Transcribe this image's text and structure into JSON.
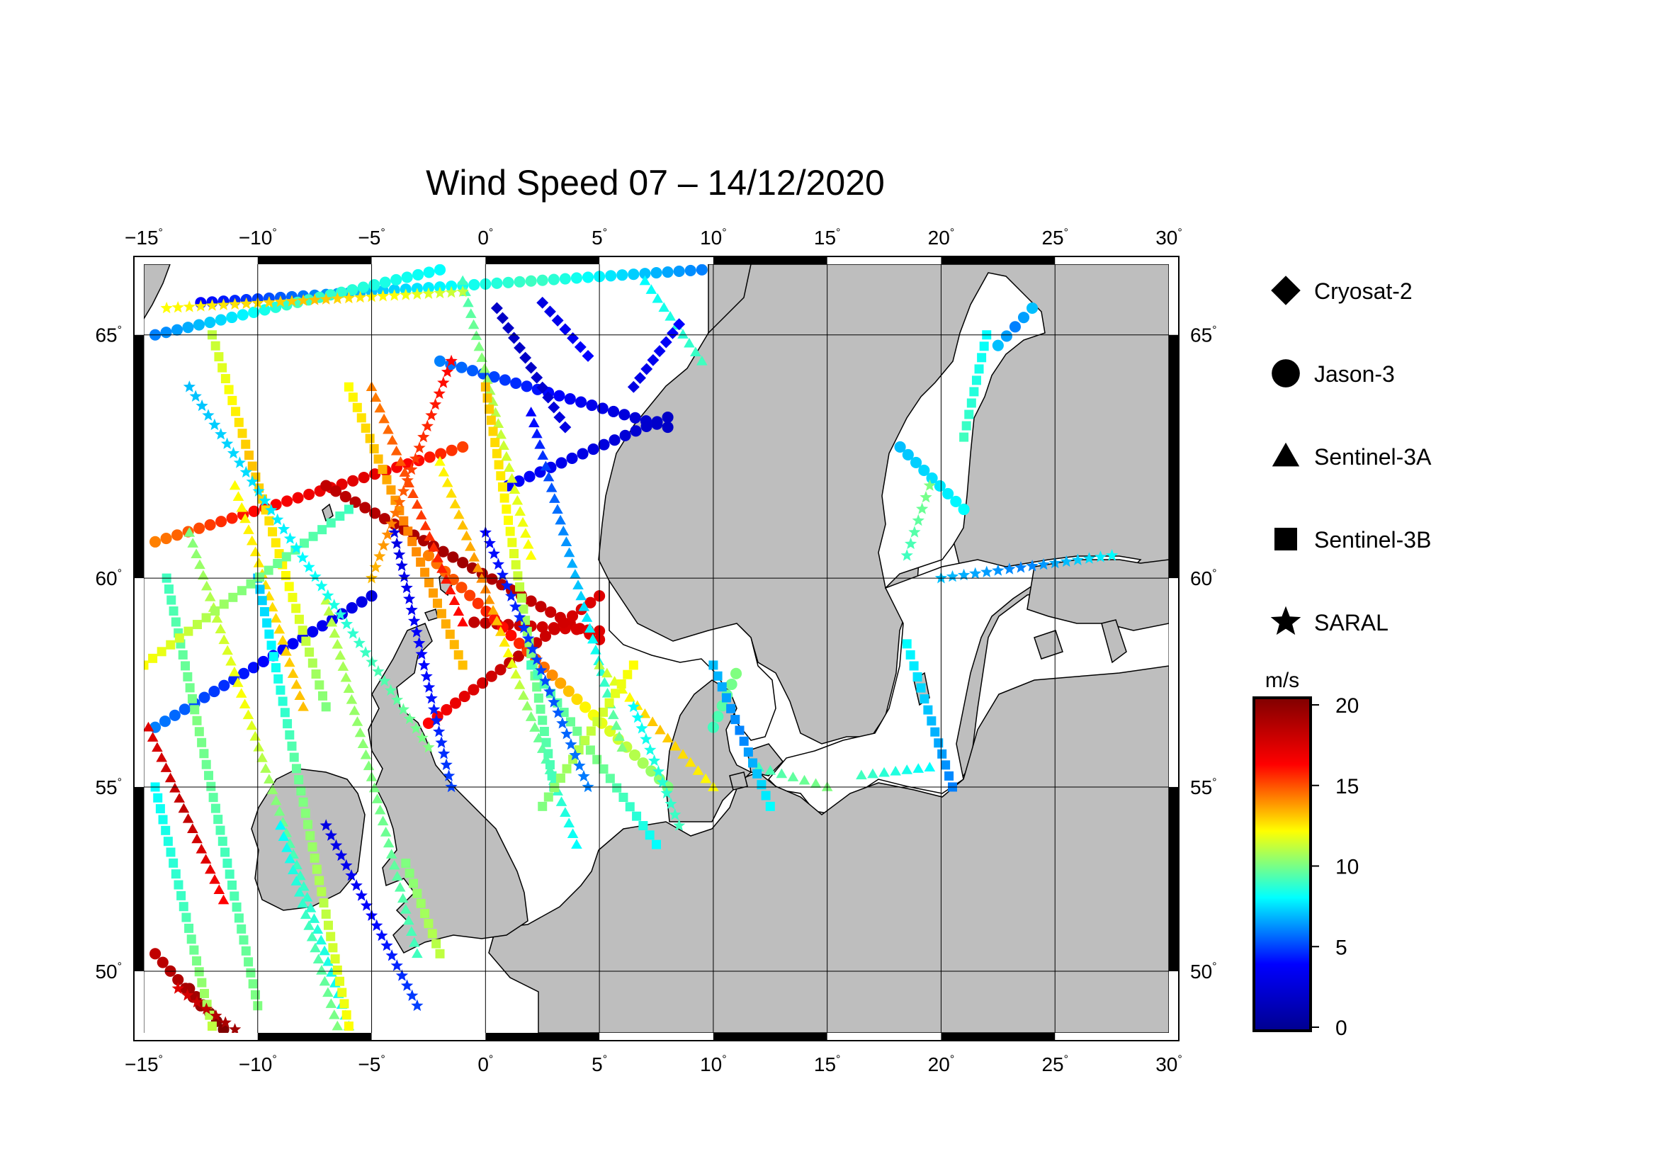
{
  "title": "Wind Speed 07 – 14/12/2020",
  "map": {
    "projection": "Mercator",
    "lon_range": [
      -15,
      30
    ],
    "lat_range": [
      48.2,
      66.3
    ],
    "lon_ticks": [
      -15,
      -10,
      -5,
      0,
      5,
      10,
      15,
      20,
      25,
      30
    ],
    "lon_tick_labels": [
      "−15",
      "−10",
      "−5",
      "0",
      "5",
      "10",
      "15",
      "20",
      "25",
      "30"
    ],
    "lat_ticks": [
      50,
      55,
      60,
      65
    ],
    "lat_tick_labels": [
      "50",
      "55",
      "60",
      "65"
    ],
    "degree_symbol": "°",
    "colors": {
      "ocean": "#ffffff",
      "land": "#bebebe",
      "coastline": "#000000",
      "grid": "#000000"
    }
  },
  "legend": {
    "items": [
      {
        "label": "Cryosat-2",
        "marker": "diamond"
      },
      {
        "label": "Jason-3",
        "marker": "circle"
      },
      {
        "label": "Sentinel-3A",
        "marker": "triangle"
      },
      {
        "label": "Sentinel-3B",
        "marker": "square"
      },
      {
        "label": "SARAL",
        "marker": "star"
      }
    ]
  },
  "colorbar": {
    "unit": "m/s",
    "range": [
      0,
      20
    ],
    "ticks": [
      0,
      5,
      10,
      15,
      20
    ],
    "tick_labels": [
      "0",
      "5",
      "10",
      "15",
      "20"
    ],
    "colormap": "jet",
    "stops": [
      "#00008f",
      "#0000ff",
      "#00ffff",
      "#ffff00",
      "#ff0000",
      "#800000"
    ]
  },
  "chart_data": {
    "type": "scatter",
    "x_label": "",
    "y_label": "",
    "value_unit": "m/s",
    "tracks": [
      {
        "sat": "Jason-3",
        "from": [
          -12.5,
          65.6
        ],
        "to": [
          9.5,
          66.2
        ],
        "v": [
          4,
          7,
          9,
          6
        ]
      },
      {
        "sat": "Jason-3",
        "from": [
          -14.5,
          65.0
        ],
        "to": [
          -2.0,
          66.2
        ],
        "v": [
          6,
          9,
          8
        ]
      },
      {
        "sat": "Jason-3",
        "from": [
          -2.0,
          64.5
        ],
        "to": [
          8.0,
          63.2
        ],
        "v": [
          6,
          4,
          2
        ]
      },
      {
        "sat": "Jason-3",
        "from": [
          1.0,
          62.0
        ],
        "to": [
          8.0,
          63.4
        ],
        "v": [
          4,
          3,
          2
        ]
      },
      {
        "sat": "Jason-3",
        "from": [
          -14.5,
          60.8
        ],
        "to": [
          -1.0,
          62.8
        ],
        "v": [
          14,
          16,
          17,
          15
        ]
      },
      {
        "sat": "Jason-3",
        "from": [
          -7.0,
          62.0
        ],
        "to": [
          5.0,
          58.6
        ],
        "v": [
          18,
          19,
          17
        ]
      },
      {
        "sat": "Jason-3",
        "from": [
          -0.5,
          59.0
        ],
        "to": [
          5.0,
          58.8
        ],
        "v": [
          18,
          17
        ]
      },
      {
        "sat": "Jason-3",
        "from": [
          -2.5,
          56.6
        ],
        "to": [
          5.0,
          59.6
        ],
        "v": [
          16,
          18,
          17
        ]
      },
      {
        "sat": "Jason-3",
        "from": [
          -14.5,
          56.5
        ],
        "to": [
          -5.0,
          59.6
        ],
        "v": [
          6,
          4,
          3
        ]
      },
      {
        "sat": "Jason-3",
        "from": [
          -2.5,
          60.5
        ],
        "to": [
          8.0,
          55.0
        ],
        "v": [
          14,
          16,
          12,
          10
        ]
      },
      {
        "sat": "Jason-3",
        "from": [
          -13.0,
          49.5
        ],
        "to": [
          -11.5,
          48.3
        ],
        "v": [
          19,
          20
        ]
      },
      {
        "sat": "Jason-3",
        "from": [
          -14.5,
          50.5
        ],
        "to": [
          -12.5,
          49.0
        ],
        "v": [
          18,
          19
        ]
      },
      {
        "sat": "Jason-3",
        "from": [
          18.2,
          62.8
        ],
        "to": [
          21.0,
          61.5
        ],
        "v": [
          7,
          8
        ]
      },
      {
        "sat": "Jason-3",
        "from": [
          22.5,
          64.8
        ],
        "to": [
          24.0,
          65.5
        ],
        "v": [
          7,
          6,
          7
        ]
      },
      {
        "sat": "Jason-3",
        "from": [
          10.0,
          56.5
        ],
        "to": [
          11.0,
          57.8
        ],
        "v": [
          9,
          10
        ]
      },
      {
        "sat": "Sentinel-3A",
        "from": [
          -13.0,
          61.0
        ],
        "to": [
          -6.0,
          48.4
        ],
        "v": [
          10,
          12,
          9,
          8
        ]
      },
      {
        "sat": "Sentinel-3A",
        "from": [
          -2.0,
          62.5
        ],
        "to": [
          4.0,
          53.5
        ],
        "v": [
          12,
          14,
          10,
          8
        ]
      },
      {
        "sat": "Sentinel-3A",
        "from": [
          -1.0,
          66.0
        ],
        "to": [
          2.0,
          60.5
        ],
        "v": [
          9,
          11,
          12
        ]
      },
      {
        "sat": "Sentinel-3A",
        "from": [
          2.0,
          63.5
        ],
        "to": [
          6.0,
          56.0
        ],
        "v": [
          4,
          7,
          10
        ]
      },
      {
        "sat": "Sentinel-3A",
        "from": [
          -7.0,
          59.5
        ],
        "to": [
          -3.0,
          50.5
        ],
        "v": [
          11,
          10,
          9
        ]
      },
      {
        "sat": "Sentinel-3A",
        "from": [
          -14.8,
          56.5
        ],
        "to": [
          -11.5,
          52.0
        ],
        "v": [
          17,
          18,
          16
        ]
      },
      {
        "sat": "Sentinel-3A",
        "from": [
          5.0,
          58.0
        ],
        "to": [
          10.0,
          55.0
        ],
        "v": [
          11,
          13,
          12
        ]
      },
      {
        "sat": "Sentinel-3A",
        "from": [
          -5.0,
          64.0
        ],
        "to": [
          -1.0,
          59.0
        ],
        "v": [
          14,
          15,
          16
        ]
      },
      {
        "sat": "Sentinel-3A",
        "from": [
          7.0,
          66.0
        ],
        "to": [
          9.5,
          64.5
        ],
        "v": [
          8,
          9
        ]
      },
      {
        "sat": "Sentinel-3A",
        "from": [
          -11.0,
          62.0
        ],
        "to": [
          -8.0,
          57.0
        ],
        "v": [
          12,
          13
        ]
      },
      {
        "sat": "Sentinel-3A",
        "from": [
          12.0,
          55.5
        ],
        "to": [
          15.0,
          55.0
        ],
        "v": [
          9,
          10
        ]
      },
      {
        "sat": "Sentinel-3A",
        "from": [
          16.5,
          55.3
        ],
        "to": [
          19.5,
          55.5
        ],
        "v": [
          9,
          8
        ]
      },
      {
        "sat": "Sentinel-3A",
        "from": [
          -9.0,
          54.0
        ],
        "to": [
          -6.5,
          48.4
        ],
        "v": [
          8,
          9,
          10
        ]
      },
      {
        "sat": "Sentinel-3B",
        "from": [
          -14.5,
          55.0
        ],
        "to": [
          -12.0,
          48.4
        ],
        "v": [
          8,
          9,
          11
        ]
      },
      {
        "sat": "Sentinel-3B",
        "from": [
          -14.0,
          60.0
        ],
        "to": [
          -10.0,
          49.0
        ],
        "v": [
          9,
          10,
          9,
          10
        ]
      },
      {
        "sat": "Sentinel-3B",
        "from": [
          -10.0,
          60.0
        ],
        "to": [
          -6.0,
          48.4
        ],
        "v": [
          7,
          10,
          12
        ]
      },
      {
        "sat": "Sentinel-3B",
        "from": [
          -12.0,
          65.0
        ],
        "to": [
          -7.0,
          57.0
        ],
        "v": [
          11,
          13,
          12,
          10
        ]
      },
      {
        "sat": "Sentinel-3B",
        "from": [
          -6.0,
          64.0
        ],
        "to": [
          -1.0,
          58.0
        ],
        "v": [
          12,
          14,
          13
        ]
      },
      {
        "sat": "Sentinel-3B",
        "from": [
          0.0,
          64.0
        ],
        "to": [
          3.0,
          55.0
        ],
        "v": [
          13,
          12,
          10,
          9
        ]
      },
      {
        "sat": "Sentinel-3B",
        "from": [
          2.0,
          58.0
        ],
        "to": [
          7.5,
          53.5
        ],
        "v": [
          9,
          10,
          8
        ]
      },
      {
        "sat": "Sentinel-3B",
        "from": [
          -15.0,
          58.0
        ],
        "to": [
          -6.0,
          61.5
        ],
        "v": [
          12,
          10,
          9
        ]
      },
      {
        "sat": "Sentinel-3B",
        "from": [
          2.5,
          54.5
        ],
        "to": [
          6.5,
          58.0
        ],
        "v": [
          10,
          11,
          12
        ]
      },
      {
        "sat": "Sentinel-3B",
        "from": [
          -3.5,
          53.0
        ],
        "to": [
          -2.0,
          50.5
        ],
        "v": [
          10,
          11
        ]
      },
      {
        "sat": "Sentinel-3B",
        "from": [
          18.5,
          58.5
        ],
        "to": [
          20.5,
          55.0
        ],
        "v": [
          8,
          7,
          6
        ]
      },
      {
        "sat": "Sentinel-3B",
        "from": [
          22.0,
          65.0
        ],
        "to": [
          21.0,
          63.0
        ],
        "v": [
          8,
          9
        ]
      },
      {
        "sat": "Sentinel-3B",
        "from": [
          10.0,
          58.0
        ],
        "to": [
          12.5,
          54.5
        ],
        "v": [
          7,
          6,
          8
        ]
      },
      {
        "sat": "SARAL",
        "from": [
          -13.0,
          64.0
        ],
        "to": [
          -2.5,
          56.0
        ],
        "v": [
          7,
          8,
          10
        ]
      },
      {
        "sat": "SARAL",
        "from": [
          -4.0,
          61.0
        ],
        "to": [
          -1.5,
          55.0
        ],
        "v": [
          3,
          4,
          5
        ]
      },
      {
        "sat": "SARAL",
        "from": [
          0.0,
          61.0
        ],
        "to": [
          4.5,
          55.0
        ],
        "v": [
          4,
          5,
          6
        ]
      },
      {
        "sat": "SARAL",
        "from": [
          -7.0,
          54.0
        ],
        "to": [
          -3.0,
          49.0
        ],
        "v": [
          3,
          4,
          5
        ]
      },
      {
        "sat": "SARAL",
        "from": [
          -13.5,
          49.5
        ],
        "to": [
          -11.0,
          48.3
        ],
        "v": [
          17,
          19
        ]
      },
      {
        "sat": "SARAL",
        "from": [
          6.5,
          57.0
        ],
        "to": [
          8.5,
          54.0
        ],
        "v": [
          8,
          9
        ]
      },
      {
        "sat": "SARAL",
        "from": [
          20.0,
          60.0
        ],
        "to": [
          27.5,
          60.5
        ],
        "v": [
          7,
          6,
          8
        ]
      },
      {
        "sat": "SARAL",
        "from": [
          19.5,
          62.0
        ],
        "to": [
          18.5,
          60.5
        ],
        "v": [
          10,
          9
        ]
      },
      {
        "sat": "SARAL",
        "from": [
          -14.0,
          65.5
        ],
        "to": [
          -1.0,
          65.8
        ],
        "v": [
          12,
          13,
          11
        ]
      },
      {
        "sat": "SARAL",
        "from": [
          -5.0,
          60.0
        ],
        "to": [
          -1.5,
          64.5
        ],
        "v": [
          13,
          15,
          16
        ]
      },
      {
        "sat": "Cryosat-2",
        "from": [
          0.5,
          65.5
        ],
        "to": [
          3.5,
          63.2
        ],
        "v": [
          2,
          2,
          3
        ]
      },
      {
        "sat": "Cryosat-2",
        "from": [
          8.5,
          65.2
        ],
        "to": [
          6.5,
          64.0
        ],
        "v": [
          4,
          3
        ]
      },
      {
        "sat": "Cryosat-2",
        "from": [
          2.5,
          65.6
        ],
        "to": [
          4.5,
          64.6
        ],
        "v": [
          3,
          4
        ]
      }
    ]
  }
}
